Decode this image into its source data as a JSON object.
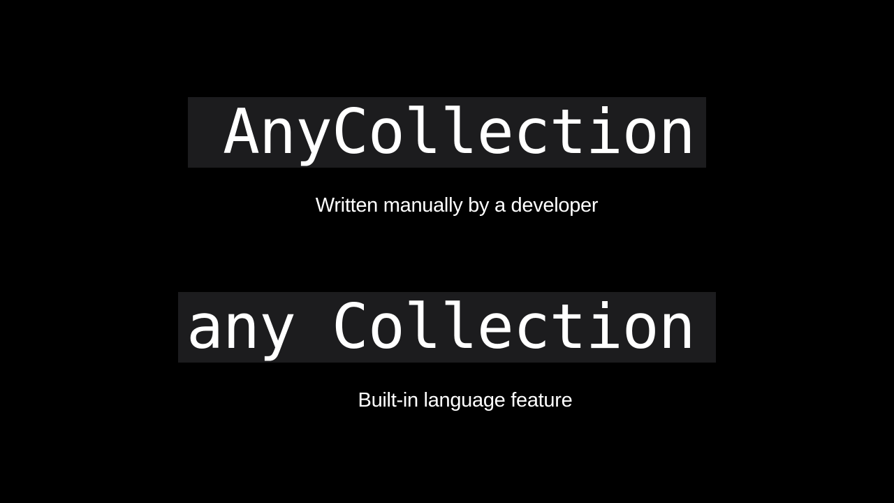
{
  "slide": {
    "top_block": {
      "code": "AnyCollection",
      "caption": "Written manually by a developer"
    },
    "bottom_block": {
      "code": "any Collection",
      "caption": "Built-in language feature"
    }
  },
  "colors": {
    "background": "#000000",
    "code_box": "#1c1c1e",
    "text": "#ffffff"
  }
}
